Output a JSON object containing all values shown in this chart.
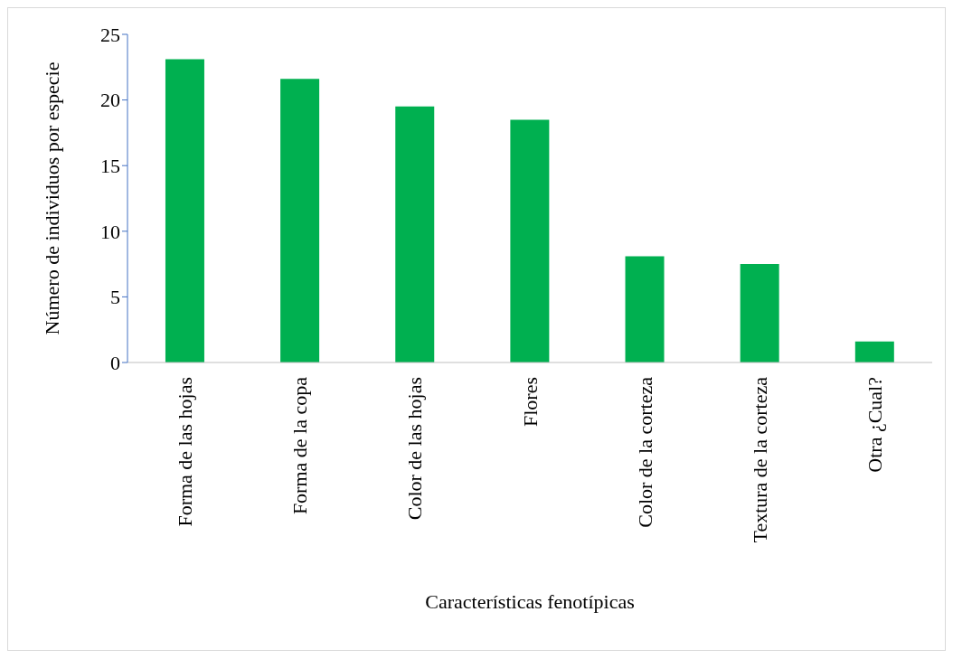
{
  "chart_data": {
    "type": "bar",
    "xlabel": "Características fenotípicas",
    "ylabel": "Número de individuos por especie",
    "categories": [
      "Forma de las hojas",
      "Forma de la copa",
      "Color de las hojas",
      "Flores",
      "Color de la corteza",
      "Textura de la corteza",
      "Otra ¿Cual?"
    ],
    "values": [
      23.1,
      21.6,
      19.5,
      18.5,
      8.1,
      7.5,
      1.6
    ],
    "color": "#00b050",
    "ylim": [
      0,
      25
    ],
    "yticks": [
      0,
      5,
      10,
      15,
      20,
      25
    ],
    "grid": false,
    "legend": false
  }
}
